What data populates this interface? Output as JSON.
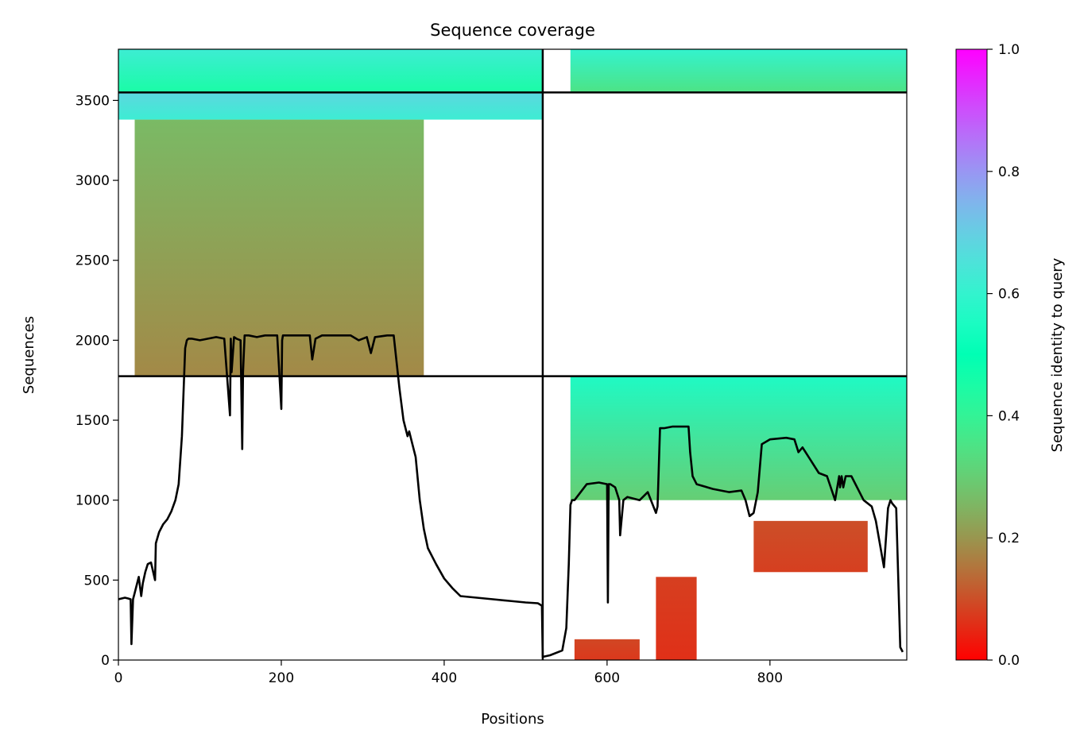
{
  "chart_data": {
    "type": "heatmap",
    "title": "Sequence coverage",
    "xlabel": "Positions",
    "ylabel": "Sequences",
    "xlim": [
      0,
      968
    ],
    "ylim": [
      0,
      3820
    ],
    "x_ticks": [
      0,
      200,
      400,
      600,
      800
    ],
    "y_ticks": [
      0,
      500,
      1000,
      1500,
      2000,
      2500,
      3000,
      3500
    ],
    "colorbar": {
      "label": "Sequence identity to query",
      "range": [
        0,
        1
      ],
      "ticks": [
        "0.0",
        "0.2",
        "0.4",
        "0.6",
        "0.8",
        "1.0"
      ],
      "colormap": "rainbow_r"
    },
    "segment_boundaries": {
      "x": [
        521
      ],
      "y": [
        1775,
        3550
      ]
    },
    "blocks": [
      {
        "x": [
          0,
          521
        ],
        "y": [
          3550,
          3820
        ],
        "identity_bottom": 0.45,
        "identity_top": 0.62
      },
      {
        "x": [
          555,
          968
        ],
        "y": [
          3550,
          3820
        ],
        "identity_bottom": 0.35,
        "identity_top": 0.6
      },
      {
        "x": [
          0,
          521
        ],
        "y": [
          3380,
          3550
        ],
        "identity_bottom": 0.62,
        "identity_top": 0.68
      },
      {
        "x": [
          20,
          375
        ],
        "y": [
          1775,
          3380
        ],
        "identity_bottom": 0.18,
        "identity_top": 0.26
      },
      {
        "x": [
          555,
          968
        ],
        "y": [
          1000,
          1775
        ],
        "identity_bottom": 0.3,
        "identity_top": 0.56
      },
      {
        "x": [
          780,
          920
        ],
        "y": [
          550,
          870
        ],
        "identity_bottom": 0.08,
        "identity_top": 0.1
      },
      {
        "x": [
          660,
          710
        ],
        "y": [
          0,
          520
        ],
        "identity_bottom": 0.06,
        "identity_top": 0.08
      },
      {
        "x": [
          560,
          640
        ],
        "y": [
          0,
          130
        ],
        "identity_bottom": 0.07,
        "identity_top": 0.09
      }
    ],
    "coverage_line": {
      "x": [
        0,
        8,
        12,
        15,
        16,
        18,
        20,
        25,
        28,
        30,
        33,
        36,
        40,
        45,
        46,
        50,
        55,
        60,
        65,
        70,
        74,
        78,
        82,
        84,
        86,
        90,
        100,
        110,
        120,
        130,
        137,
        138,
        139,
        142,
        145,
        150,
        152,
        153,
        155,
        160,
        170,
        180,
        195,
        200,
        201,
        202,
        206,
        210,
        220,
        235,
        238,
        242,
        250,
        270,
        285,
        295,
        305,
        310,
        315,
        330,
        338,
        345,
        350,
        355,
        357,
        360,
        365,
        370,
        375,
        380,
        390,
        400,
        410,
        420,
        440,
        460,
        480,
        500,
        515,
        520,
        521,
        530,
        545,
        550,
        553,
        555,
        557,
        560,
        575,
        590,
        600,
        601,
        602,
        604,
        610,
        615,
        616,
        620,
        625,
        640,
        650,
        660,
        662,
        665,
        670,
        680,
        700,
        702,
        705,
        710,
        730,
        750,
        765,
        770,
        775,
        780,
        785,
        790,
        800,
        820,
        830,
        835,
        840,
        850,
        860,
        870,
        880,
        885,
        886,
        888,
        890,
        893,
        895,
        900,
        915,
        920,
        925,
        930,
        940,
        945,
        948,
        950,
        955,
        960,
        963,
        966,
        968
      ],
      "y": [
        380,
        390,
        385,
        380,
        100,
        380,
        420,
        520,
        400,
        480,
        550,
        600,
        610,
        500,
        730,
        800,
        850,
        880,
        930,
        1000,
        1100,
        1400,
        1950,
        2000,
        2010,
        2010,
        2000,
        2010,
        2020,
        2010,
        1530,
        2010,
        1800,
        2020,
        2010,
        2000,
        1320,
        1800,
        2030,
        2030,
        2020,
        2030,
        2030,
        1570,
        2000,
        2030,
        2030,
        2030,
        2030,
        2030,
        1880,
        2010,
        2030,
        2030,
        2030,
        2000,
        2020,
        1920,
        2020,
        2030,
        2030,
        1700,
        1500,
        1400,
        1430,
        1370,
        1270,
        1000,
        820,
        700,
        600,
        510,
        450,
        400,
        390,
        380,
        370,
        360,
        355,
        340,
        20,
        30,
        60,
        200,
        600,
        970,
        1000,
        1000,
        1100,
        1110,
        1100,
        360,
        1100,
        1100,
        1080,
        1000,
        780,
        1000,
        1020,
        1000,
        1050,
        920,
        960,
        1450,
        1450,
        1460,
        1460,
        1300,
        1150,
        1100,
        1070,
        1050,
        1060,
        1000,
        900,
        920,
        1050,
        1350,
        1380,
        1390,
        1380,
        1300,
        1330,
        1250,
        1170,
        1150,
        1000,
        1150,
        1080,
        1150,
        1080,
        1150,
        1150,
        1150,
        1000,
        980,
        960,
        870,
        580,
        950,
        1000,
        980,
        950,
        80,
        50
      ]
    }
  }
}
